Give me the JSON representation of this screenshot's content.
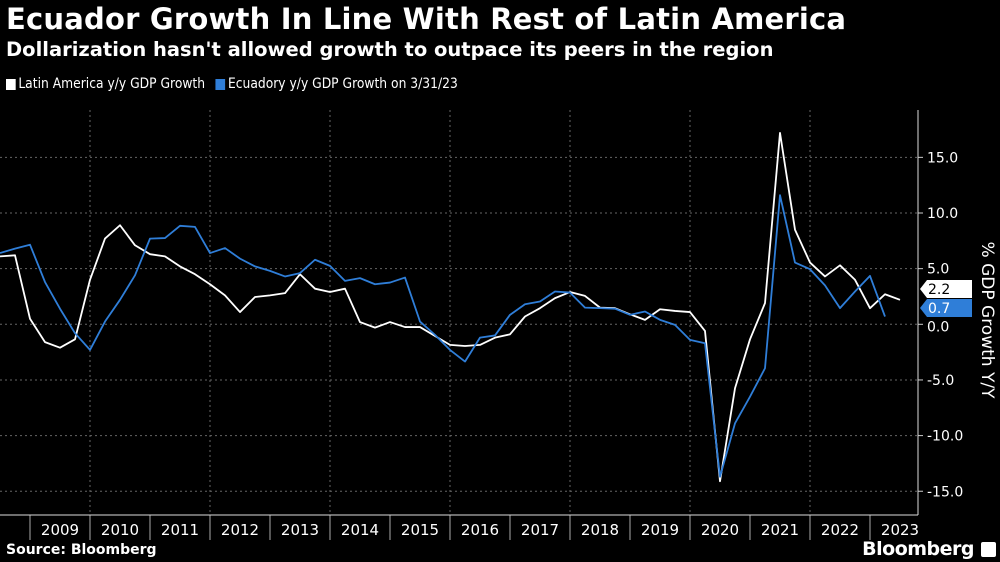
{
  "header": {
    "title": "Ecuador Growth In Line With Rest of Latin America",
    "subtitle": "Dollarization hasn't allowed growth to outpace its peers in the region"
  },
  "footer": {
    "source": "Source: Bloomberg",
    "logo": "Bloomberg"
  },
  "chart_data": {
    "type": "line",
    "title": "Ecuador Growth In Line With Rest of Latin America",
    "subtitle": "Dollarization hasn't allowed growth to outpace its peers in the region",
    "xlabel": "",
    "ylabel": "% GDP Growth Y/Y",
    "ylim": [
      -17,
      19
    ],
    "y_ticks": [
      "15.0",
      "10.0",
      "5.0",
      "0.0",
      "-5.0",
      "-10.0",
      "-15.0"
    ],
    "y_tick_values": [
      15,
      10,
      5,
      0,
      -5,
      -10,
      -15
    ],
    "x_ticks": [
      "2009",
      "2010",
      "2011",
      "2012",
      "2013",
      "2014",
      "2015",
      "2016",
      "2017",
      "2018",
      "2019",
      "2020",
      "2021",
      "2022",
      "2023"
    ],
    "grid": true,
    "legend_position": "top-left",
    "x_frequency": "quarterly (quarter-end)",
    "series": [
      {
        "name": "Latin America y/y GDP Growth",
        "color": "#ffffff",
        "start": "2008Q2",
        "end": "2023Q2",
        "last_value_label": "2.2",
        "values": [
          6.1,
          6.2,
          0.5,
          -1.6,
          -2.1,
          -1.35,
          4.0,
          7.7,
          8.9,
          7.1,
          6.3,
          6.1,
          5.2,
          4.5,
          3.6,
          2.6,
          1.1,
          2.45,
          2.6,
          2.8,
          4.5,
          3.2,
          2.9,
          3.2,
          0.2,
          -0.3,
          0.2,
          -0.25,
          -0.25,
          -1.05,
          -1.85,
          -1.95,
          -1.85,
          -1.2,
          -0.9,
          0.7,
          1.45,
          2.35,
          2.9,
          2.55,
          1.5,
          1.45,
          0.9,
          0.4,
          1.35,
          1.2,
          1.1,
          -0.6,
          -14.1,
          -5.75,
          -1.35,
          1.9,
          17.2,
          8.5,
          5.55,
          4.3,
          5.3,
          4.0,
          1.45,
          2.7,
          2.2
        ]
      },
      {
        "name": "Ecuadory y/y GDP Growth on 3/31/23",
        "color": "#2f7ed8",
        "start": "2008Q2",
        "end": "2023Q1",
        "last_value_label": "0.7",
        "values": [
          6.4,
          6.8,
          7.15,
          3.8,
          1.4,
          -0.8,
          -2.3,
          0.25,
          2.2,
          4.4,
          7.7,
          7.75,
          8.85,
          8.75,
          6.4,
          6.85,
          5.9,
          5.2,
          4.8,
          4.3,
          4.6,
          5.8,
          5.25,
          3.9,
          4.15,
          3.6,
          3.75,
          4.2,
          0.25,
          -0.95,
          -2.3,
          -3.35,
          -1.2,
          -1.0,
          0.85,
          1.8,
          2.05,
          2.95,
          2.85,
          1.5,
          1.45,
          1.4,
          0.85,
          1.15,
          0.4,
          -0.05,
          -1.4,
          -1.7,
          -13.7,
          -8.9,
          -6.5,
          -3.95,
          11.6,
          5.55,
          4.95,
          3.5,
          1.45,
          2.95,
          4.35,
          0.7
        ]
      }
    ]
  }
}
